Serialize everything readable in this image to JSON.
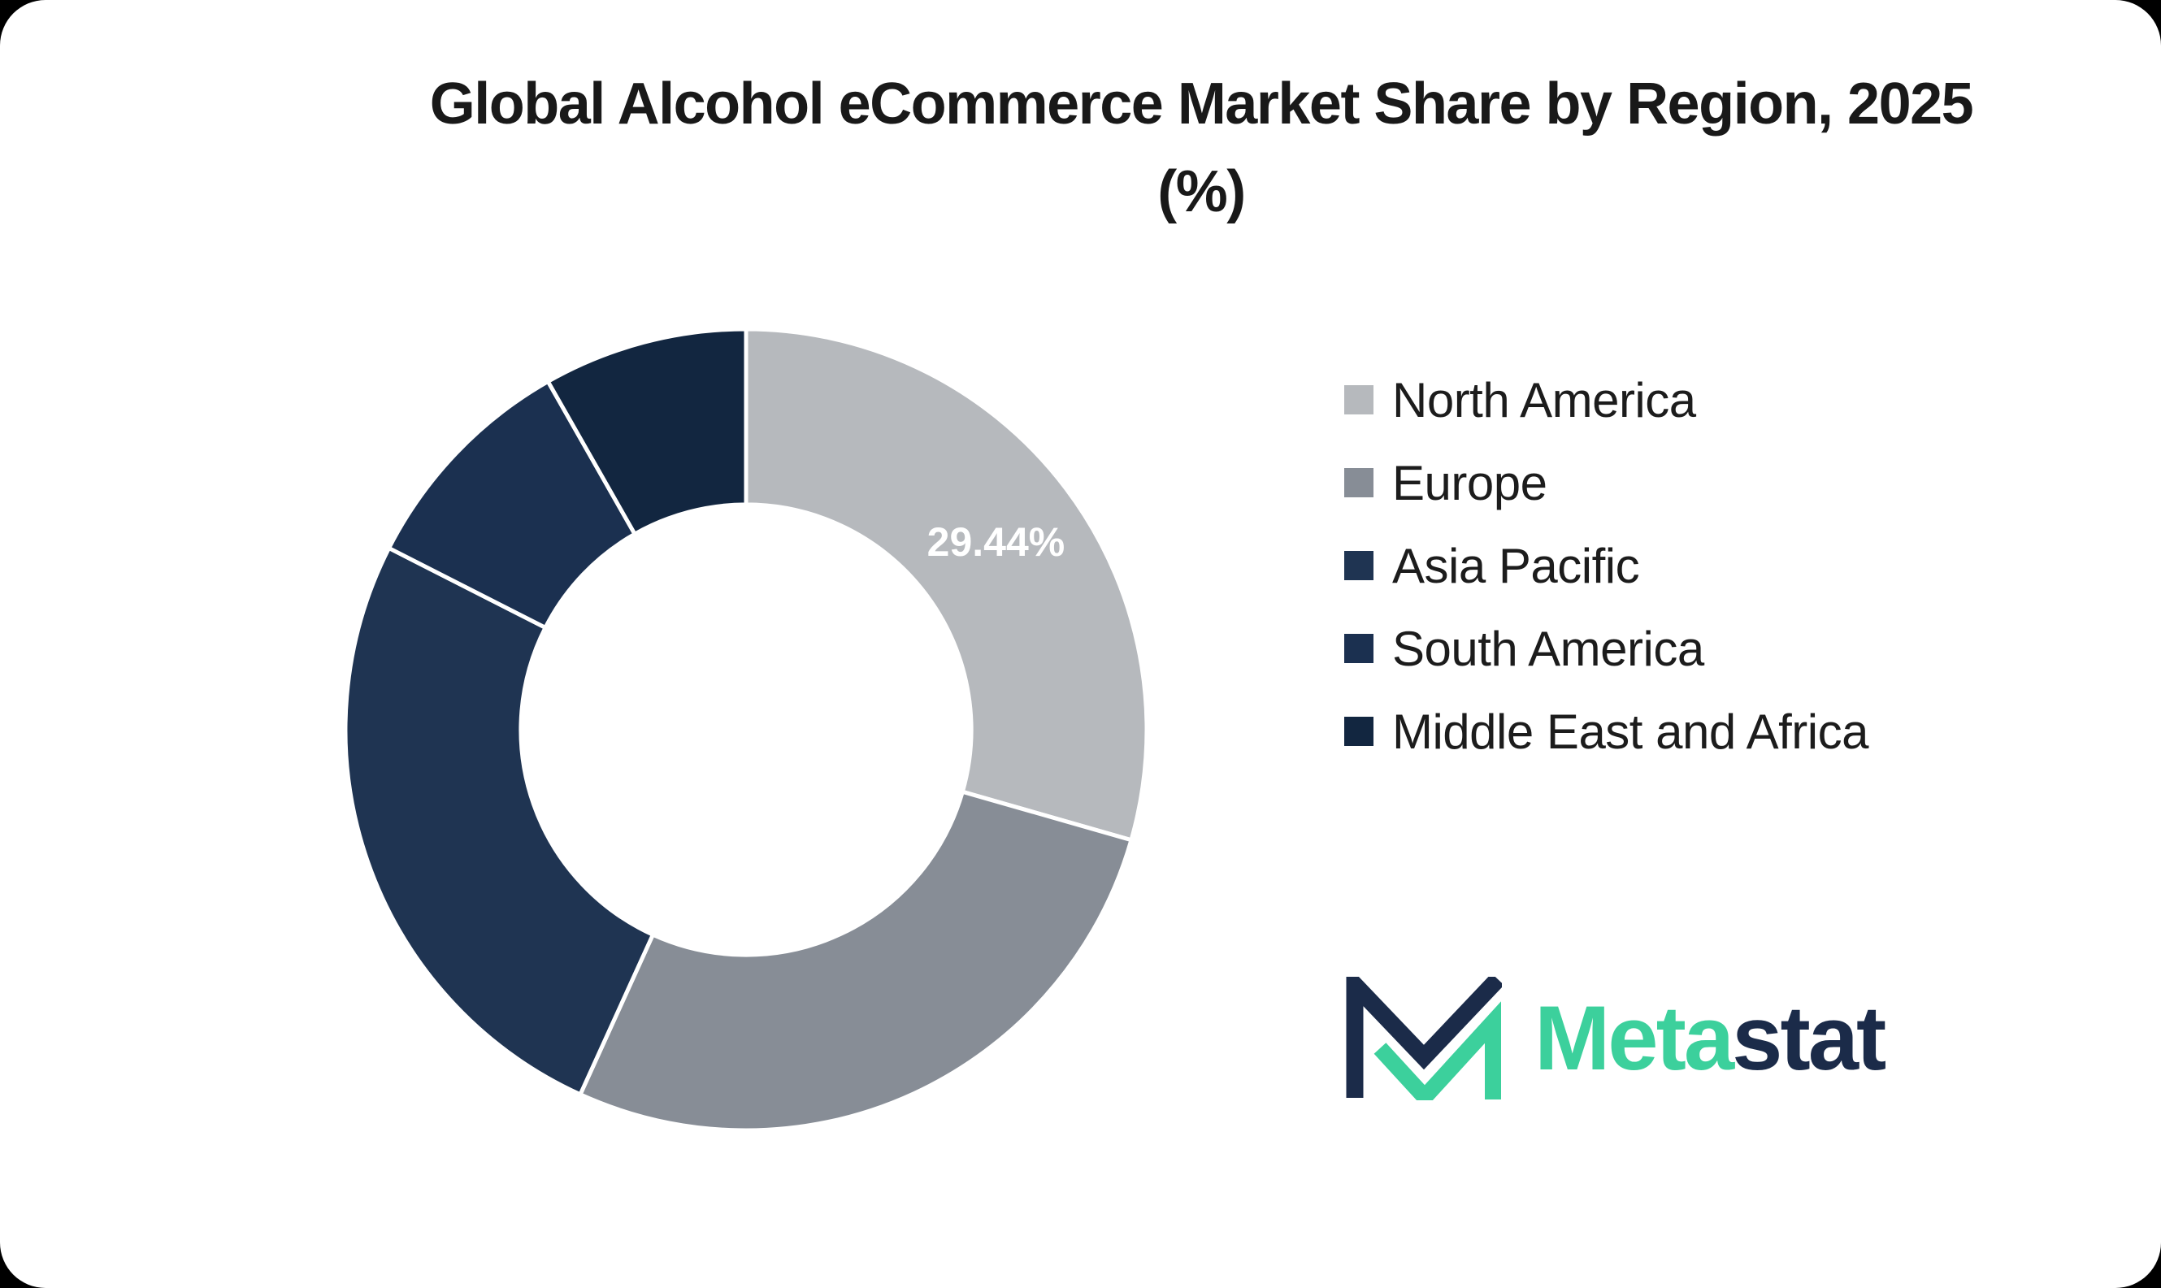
{
  "header": {
    "title_line1": "Global Alcohol eCommerce Market Share by Region, 2025",
    "title_line2": "(%)"
  },
  "chart_data": {
    "type": "pie",
    "subtype": "donut",
    "title": "Global Alcohol eCommerce Market Share by Region, 2025 (%)",
    "categories": [
      "North America",
      "Europe",
      "Asia Pacific",
      "South America",
      "Middle East and Africa"
    ],
    "values": [
      29.44,
      27.35,
      25.7,
      9.28,
      8.23
    ],
    "slice_labels": [
      "29.44%",
      "",
      "",
      "",
      ""
    ],
    "colors": [
      "#b6b9bd",
      "#878d96",
      "#1f3452",
      "#1b3050",
      "#122640"
    ],
    "start_angle_deg": 0,
    "direction": "clockwise",
    "inner_radius_ratio": 0.562,
    "separator_color": "#ffffff",
    "separator_width": 5,
    "data_label_color": "#ffffff",
    "legend_position": "right",
    "legend_marker": "square"
  },
  "logo": {
    "text_primary": "Meta",
    "text_secondary": "stat",
    "primary_color": "#3cd09c",
    "secondary_color": "#1b2b49"
  },
  "theme": {
    "page_background": "#000000",
    "card_background": "#ffffff",
    "title_color": "#191919",
    "legend_text_color": "#1c1c1c"
  }
}
